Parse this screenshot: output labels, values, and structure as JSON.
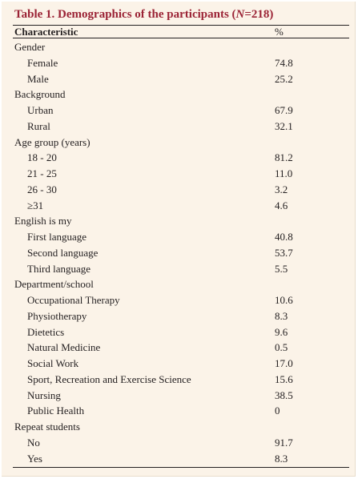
{
  "table": {
    "title_prefix": "Table 1. Demographics of the participants (",
    "title_n_symbol": "N",
    "title_suffix": "=218)",
    "header_characteristic": "Characteristic",
    "header_percent": "%",
    "rows": [
      {
        "type": "group",
        "label": "Gender",
        "value": ""
      },
      {
        "type": "item",
        "label": "Female",
        "value": "74.8"
      },
      {
        "type": "item",
        "label": "Male",
        "value": "25.2"
      },
      {
        "type": "group",
        "label": "Background",
        "value": ""
      },
      {
        "type": "item",
        "label": "Urban",
        "value": "67.9"
      },
      {
        "type": "item",
        "label": "Rural",
        "value": "32.1"
      },
      {
        "type": "group",
        "label": "Age group (years)",
        "value": ""
      },
      {
        "type": "item",
        "label": "18 - 20",
        "value": "81.2"
      },
      {
        "type": "item",
        "label": "21 - 25",
        "value": "11.0"
      },
      {
        "type": "item",
        "label": "26 - 30",
        "value": "3.2"
      },
      {
        "type": "item",
        "label": "≥31",
        "value": "4.6"
      },
      {
        "type": "group",
        "label": "English is my",
        "value": ""
      },
      {
        "type": "item",
        "label": "First language",
        "value": "40.8"
      },
      {
        "type": "item",
        "label": "Second language",
        "value": "53.7"
      },
      {
        "type": "item",
        "label": "Third language",
        "value": "5.5"
      },
      {
        "type": "group",
        "label": "Department/school",
        "value": ""
      },
      {
        "type": "item",
        "label": "Occupational Therapy",
        "value": "10.6"
      },
      {
        "type": "item",
        "label": "Physiotherapy",
        "value": "8.3"
      },
      {
        "type": "item",
        "label": "Dietetics",
        "value": "9.6"
      },
      {
        "type": "item",
        "label": "Natural Medicine",
        "value": "0.5"
      },
      {
        "type": "item",
        "label": "Social Work",
        "value": "17.0"
      },
      {
        "type": "item",
        "label": "Sport, Recreation and Exercise Science",
        "value": "15.6"
      },
      {
        "type": "item",
        "label": "Nursing",
        "value": "38.5"
      },
      {
        "type": "item",
        "label": "Public Health",
        "value": "0"
      },
      {
        "type": "group",
        "label": "Repeat students",
        "value": ""
      },
      {
        "type": "item",
        "label": "No",
        "value": "91.7"
      },
      {
        "type": "item",
        "label": "Yes",
        "value": "8.3"
      }
    ]
  },
  "colors": {
    "title": "#9b2335",
    "background": "#fbf3e8",
    "text": "#231f20"
  }
}
